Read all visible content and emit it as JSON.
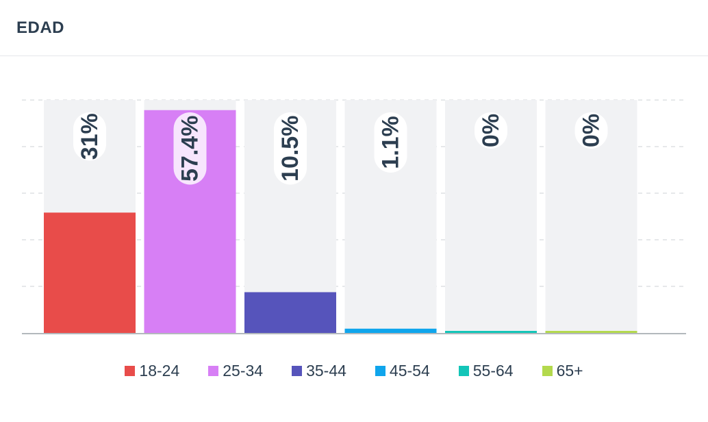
{
  "card": {
    "title": "EDAD"
  },
  "chart_data": {
    "type": "bar",
    "categories": [
      "18-24",
      "25-34",
      "35-44",
      "45-54",
      "55-64",
      "65+"
    ],
    "values": [
      31,
      57.4,
      10.5,
      1.1,
      0,
      0
    ],
    "labels": [
      "31%",
      "57.4%",
      "10.5%",
      "1.1%",
      "0%",
      "0%"
    ],
    "colors": [
      "#e84c4a",
      "#d77ff5",
      "#5654bb",
      "#0fa5ec",
      "#13c5b8",
      "#b3d94d"
    ],
    "ylim": [
      0,
      60
    ],
    "grid": true,
    "legend_position": "bottom"
  }
}
